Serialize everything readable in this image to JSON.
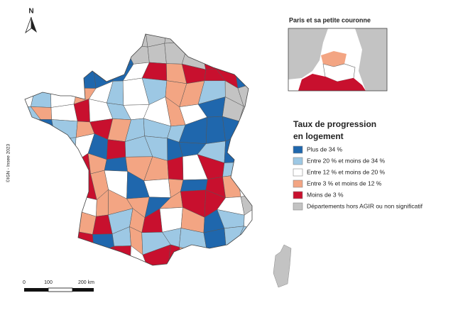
{
  "north": "N",
  "inset": {
    "title": "Paris et sa petite couronne"
  },
  "legend": {
    "title": [
      "Taux de progression",
      "en logement"
    ],
    "items": [
      {
        "label": "Plus de 34 %",
        "color": "#1f67ad"
      },
      {
        "label": "Entre 20 % et moins de 34 %",
        "color": "#9dc8e4"
      },
      {
        "label": "Entre 12 % et moins de 20 %",
        "color": "#ffffff"
      },
      {
        "label": "Entre 3 % et moins de 12 %",
        "color": "#f3a583"
      },
      {
        "label": "Moins de 3 %",
        "color": "#c8102e"
      },
      {
        "label": "Départements hors AGIR ou non significatif",
        "color": "#c3c3c3"
      }
    ]
  },
  "credit": "©IGN - Insee 2023",
  "scale": [
    "0",
    "100",
    "200 km"
  ]
}
